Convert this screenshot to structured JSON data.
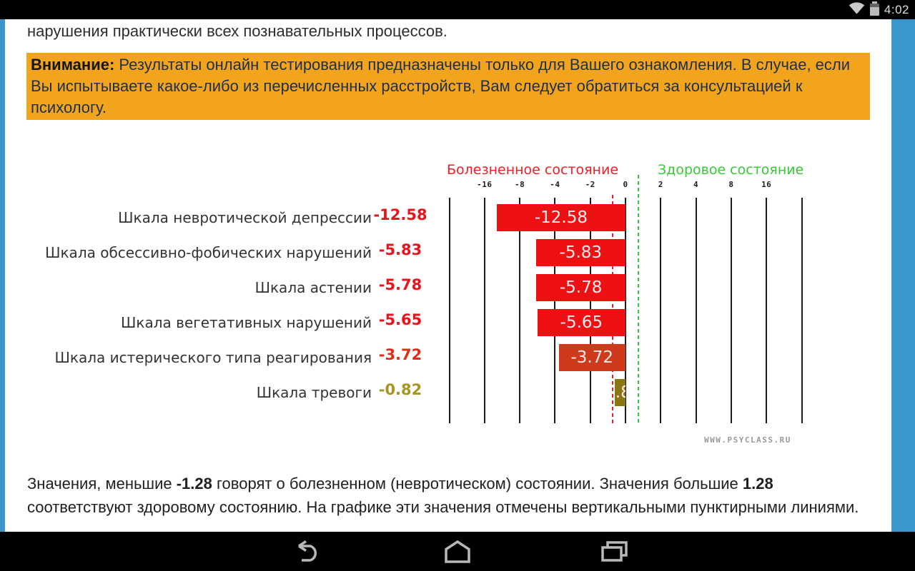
{
  "status_bar": {
    "time": "4:02",
    "icons": {
      "wifi": "wifi-icon",
      "battery": "battery-icon"
    }
  },
  "page": {
    "intro_line": "нарушения практически всех познавательных процессов.",
    "warning": {
      "label": "Внимание:",
      "text": " Результаты онлайн тестирования предназначены только для Вашего ознакомления. В случае, если Вы испытываете какое-либо из перечисленных расстройств, Вам следует обратиться за консультацией к психологу."
    },
    "footer": {
      "p1": "Значения, меньшие ",
      "b1": "-1.28",
      "p2": " говорят о болезненном (невротическом) состоянии. Значения большие ",
      "b2": "1.28",
      "p3": " соответствуют здоровому состоянию. На графике эти значения отмечены вертикальными пунктирными линиями."
    },
    "watermark": "WWW.PSYCLASS.RU"
  },
  "chart_data": {
    "type": "bar",
    "orientation": "horizontal",
    "scale": "symmetric-log2",
    "left_header": {
      "label": "Болезненное состояние",
      "color": "#ed2024"
    },
    "right_header": {
      "label": "Здоровое состояние",
      "color": "#33cc33"
    },
    "axis": {
      "ticks": [
        {
          "v": -32,
          "label": ""
        },
        {
          "v": -16,
          "label": "-16"
        },
        {
          "v": -8,
          "label": "-8"
        },
        {
          "v": -4,
          "label": "-4"
        },
        {
          "v": -2,
          "label": "-2"
        },
        {
          "v": 0,
          "label": "0"
        },
        {
          "v": 2,
          "label": "2"
        },
        {
          "v": 4,
          "label": "4"
        },
        {
          "v": 8,
          "label": "8"
        },
        {
          "v": 16,
          "label": "16"
        },
        {
          "v": 32,
          "label": ""
        }
      ]
    },
    "thresholds": [
      {
        "value": -1.28,
        "color": "#e82416"
      },
      {
        "value": 1.28,
        "color": "#2fcc35"
      }
    ],
    "rows": [
      {
        "label": "Шкала невротической депрессии",
        "value": -12.58,
        "display": "-12.58",
        "bar_color": "#ee1114",
        "value_color": "#e8131b"
      },
      {
        "label": "Шкала обсессивно-фобических нарушений",
        "value": -5.83,
        "display": "-5.83",
        "bar_color": "#ee1114",
        "value_color": "#e8131b"
      },
      {
        "label": "Шкала астении",
        "value": -5.78,
        "display": "-5.78",
        "bar_color": "#ee1114",
        "value_color": "#e8131b"
      },
      {
        "label": "Шкала вегетативных нарушений",
        "value": -5.65,
        "display": "-5.65",
        "bar_color": "#ee1114",
        "value_color": "#e8131b"
      },
      {
        "label": "Шкала истерического типа реагирования",
        "value": -3.72,
        "display": "-3.72",
        "bar_color": "#ce3a1c",
        "value_color": "#e02c18"
      },
      {
        "label": "Шкала тревоги",
        "value": -0.82,
        "display": "-0.82",
        "bar_color": "#8b7514",
        "value_color": "#a6961f"
      }
    ]
  },
  "navbar": {
    "icons": {
      "back": "back-icon",
      "home": "home-icon",
      "recents": "recents-icon"
    }
  }
}
